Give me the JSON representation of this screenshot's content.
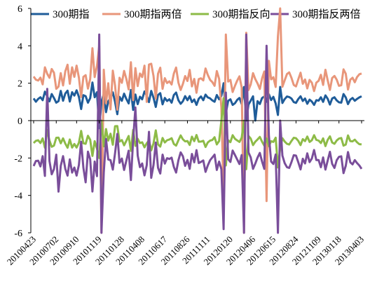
{
  "chart_data": {
    "type": "line",
    "title": "",
    "xlabel": "",
    "ylabel": "",
    "ylim": [
      -6,
      6
    ],
    "yticks": [
      -6,
      -4,
      -2,
      0,
      2,
      4,
      6
    ],
    "grid": false,
    "legend_position": "top",
    "x_tick_labels": [
      "20100423",
      "20100702",
      "20100910",
      "20101119",
      "20110128",
      "20110408",
      "20110617",
      "20110826",
      "20111111",
      "20120120",
      "20120406",
      "20120615",
      "20120824",
      "20121109",
      "20130118",
      "20130403"
    ],
    "x_count": 146,
    "series": [
      {
        "name": "300期指",
        "color": "#1f5c99",
        "values": [
          1.19,
          1.01,
          1.16,
          1.25,
          1.09,
          1.55,
          1.3,
          1.03,
          1.42,
          1.21,
          0.96,
          1.04,
          1.59,
          1.06,
          1.45,
          1.6,
          1.02,
          1.52,
          1.34,
          1.62,
          1.27,
          0.62,
          1.36,
          1.31,
          0.96,
          1.2,
          2.04,
          1.25,
          1.52,
          0.94,
          1.05,
          1.43,
          0.45,
          1.03,
          1.2,
          1.51,
          1.0,
          0.34,
          1.27,
          1.06,
          1.44,
          1.16,
          0.92,
          1.64,
          0.57,
          1.4,
          0.88,
          1.28,
          1.14,
          1.56,
          1.34,
          0.99,
          1.59,
          1.22,
          0.73,
          1.37,
          1.47,
          0.87,
          1.21,
          1.05,
          1.14,
          0.96,
          1.37,
          1.5,
          1.09,
          0.9,
          1.04,
          1.31,
          1.09,
          1.31,
          0.99,
          1.13,
          0.84,
          1.17,
          1.29,
          1.09,
          1.39,
          1.24,
          1.19,
          1.08,
          1.01,
          1.37,
          1.14,
          1.32,
          1.13,
          0.94,
          1.06,
          1.14,
          0.84,
          0.93,
          1.11,
          1.21,
          0.89,
          1.03,
          1.11,
          0.86,
          1.07,
          1.3,
          1.16,
          1.04,
          0.89,
          1.21,
          1.29,
          1.01,
          1.41,
          1.1,
          1.27,
          0.92,
          1.1,
          1.05,
          0.94,
          1.15,
          1.29,
          1.26,
          1.18,
          0.99,
          0.95,
          1.15,
          1.3,
          1.05,
          1.18,
          0.9,
          1.12,
          1.02,
          0.84,
          1.09,
          1.07,
          1.25,
          1.0,
          1.35,
          1.17,
          0.86,
          1.18,
          1.25,
          1.08,
          0.98,
          0.96,
          1.42,
          1.24,
          0.88,
          1.12,
          1.21,
          1.06,
          1.16,
          1.24,
          1.3
        ]
      },
      {
        "name": "300期指两倍",
        "color": "#e8967a",
        "values": [
          2.36,
          2.19,
          2.14,
          2.3,
          1.94,
          2.85,
          2.5,
          2.29,
          2.76,
          2.56,
          1.7,
          1.82,
          2.54,
          1.88,
          2.64,
          2.99,
          1.97,
          2.85,
          2.34,
          2.94,
          2.3,
          1.26,
          2.34,
          2.43,
          1.71,
          2.23,
          3.87,
          2.33,
          2.93,
          1.7,
          1.78,
          2.72,
          0.93,
          2.0,
          2.14,
          2.67,
          1.88,
          0.58,
          2.29,
          2.02,
          2.66,
          2.23,
          1.67,
          3.12,
          1.1,
          2.81,
          1.85,
          2.52,
          2.33,
          2.94,
          2.51,
          1.98,
          3.04,
          2.38,
          1.18,
          2.51,
          2.83,
          1.7,
          2.27,
          2.01,
          2.1,
          1.93,
          2.52,
          2.84,
          2.03,
          1.64,
          1.96,
          2.38,
          2.12,
          2.71,
          1.83,
          2.23,
          1.49,
          2.22,
          2.26,
          2.15,
          2.79,
          2.45,
          2.18,
          2.06,
          1.86,
          2.65,
          2.23,
          2.57,
          2.12,
          1.82,
          2.09,
          2.18,
          1.53,
          1.86,
          2.14,
          2.37,
          1.77,
          1.98,
          2.13,
          1.63,
          1.94,
          2.54,
          2.22,
          1.99,
          1.69,
          2.26,
          2.63,
          1.89,
          2.82,
          2.21,
          2.32,
          1.8,
          2.15,
          1.91,
          1.81,
          2.16,
          2.49,
          2.58,
          2.29,
          1.91,
          1.83,
          2.2,
          2.56,
          1.97,
          2.2,
          1.72,
          2.18,
          2.03,
          1.58,
          2.03,
          2.13,
          2.45,
          1.91,
          2.72,
          2.16,
          1.64,
          2.28,
          2.39,
          2.19,
          1.86,
          1.89,
          2.74,
          2.51,
          1.66,
          2.19,
          2.29,
          2.05,
          2.33,
          2.48,
          2.52
        ]
      },
      {
        "name": "300期指反向",
        "color": "#8dbb47",
        "values": [
          -1.2,
          -1.08,
          -1.05,
          -1.2,
          -0.95,
          -1.45,
          -1.27,
          -1.07,
          -1.4,
          -1.34,
          -0.92,
          -0.91,
          -1.21,
          -0.95,
          -1.23,
          -1.45,
          -1.01,
          -1.44,
          -1.25,
          -1.44,
          -1.18,
          -0.55,
          -1.21,
          -1.24,
          -0.81,
          -1.02,
          -1.89,
          -1.1,
          -1.51,
          -0.84,
          -0.94,
          -1.38,
          -0.45,
          -1.07,
          -1.06,
          -1.29,
          -0.89,
          -0.29,
          -1.12,
          -1.04,
          -1.32,
          -1.08,
          -0.82,
          -1.62,
          -0.5,
          -1.35,
          -0.97,
          -1.2,
          -1.16,
          -1.43,
          -1.21,
          -1.06,
          -1.59,
          -1.21,
          -0.52,
          -1.27,
          -1.39,
          -0.93,
          -1.17,
          -1.05,
          -1.01,
          -0.94,
          -1.25,
          -1.34,
          -1.05,
          -0.79,
          -1.0,
          -1.11,
          -1.09,
          -1.3,
          -0.86,
          -1.1,
          -0.77,
          -1.13,
          -1.12,
          -1.08,
          -1.41,
          -1.17,
          -1.07,
          -1.04,
          -0.89,
          -1.27,
          -1.09,
          -1.32,
          -1.08,
          -0.92,
          -1.05,
          -1.15,
          -0.78,
          -0.97,
          -1.06,
          -1.14,
          -0.91,
          -0.98,
          -1.05,
          -0.82,
          -0.96,
          -1.31,
          -1.13,
          -1.01,
          -0.87,
          -1.13,
          -1.34,
          -0.96,
          -1.37,
          -1.1,
          -1.14,
          -0.91,
          -1.04,
          -0.97,
          -0.94,
          -1.12,
          -1.24,
          -1.28,
          -1.09,
          -0.92,
          -0.94,
          -1.08,
          -1.31,
          -0.99,
          -1.1,
          -0.85,
          -1.14,
          -1.05,
          -0.78,
          -1.03,
          -1.07,
          -1.2,
          -0.95,
          -1.36,
          -1.03,
          -0.84,
          -1.17,
          -1.24,
          -1.06,
          -0.96,
          -0.93,
          -1.34,
          -1.28,
          -0.79,
          -1.1,
          -1.11,
          -1.02,
          -1.16,
          -1.26,
          -1.27
        ]
      },
      {
        "name": "300期指反两倍",
        "color": "#7a4e9a",
        "values": [
          -2.43,
          -2.16,
          -2.14,
          -2.45,
          -1.9,
          -2.96,
          -2.53,
          -2.16,
          -2.87,
          -2.59,
          -1.82,
          -1.9,
          -2.42,
          -1.9,
          -2.58,
          -2.94,
          -2.07,
          -2.78,
          -2.51,
          -2.94,
          -2.37,
          -1.13,
          -2.52,
          -2.4,
          -1.66,
          -2.07,
          -3.79,
          -2.19,
          -2.97,
          -1.66,
          -1.79,
          -2.77,
          -0.98,
          -2.08,
          -2.11,
          -2.62,
          -1.74,
          -0.71,
          -2.26,
          -2.03,
          -2.64,
          -2.14,
          -1.61,
          -3.18,
          -1.04,
          -2.67,
          -1.87,
          -2.49,
          -2.29,
          -2.93,
          -2.39,
          -1.96,
          -3.06,
          -2.37,
          -1.17,
          -2.52,
          -2.83,
          -1.82,
          -2.3,
          -2.01,
          -2.05,
          -1.98,
          -2.48,
          -2.78,
          -2.12,
          -1.7,
          -1.91,
          -2.42,
          -2.1,
          -2.58,
          -1.78,
          -2.23,
          -1.58,
          -2.27,
          -2.21,
          -2.13,
          -2.74,
          -2.4,
          -2.12,
          -1.97,
          -1.82,
          -2.64,
          -2.19,
          -2.6,
          -2.16,
          -1.85,
          -2.06,
          -2.21,
          -1.6,
          -1.84,
          -2.08,
          -2.32,
          -1.84,
          -1.96,
          -2.19,
          -1.7,
          -1.97,
          -2.58,
          -2.3,
          -1.98,
          -1.73,
          -2.19,
          -2.58,
          -1.87,
          -2.7,
          -2.19,
          -2.32,
          -1.81,
          -2.13,
          -1.99,
          -1.87,
          -2.28,
          -2.49,
          -2.53,
          -2.22,
          -1.85,
          -1.87,
          -2.22,
          -2.61,
          -2.04,
          -2.29,
          -1.75,
          -2.22,
          -2.03,
          -1.57,
          -2.11,
          -2.11,
          -2.49,
          -1.97,
          -2.62,
          -2.14,
          -1.67,
          -2.31,
          -2.53,
          -2.12,
          -1.94,
          -1.91,
          -2.81,
          -2.42,
          -1.68,
          -2.23,
          -2.34,
          -2.11,
          -2.27,
          -2.4,
          -2.58
        ]
      }
    ],
    "spikes": [
      {
        "index": 6,
        "values": [
          null,
          null,
          -0.5,
          1.7
        ]
      },
      {
        "index": 11,
        "values": [
          null,
          null,
          null,
          -3.8
        ]
      },
      {
        "index": 23,
        "values": [
          null,
          null,
          null,
          -3.3
        ]
      },
      {
        "index": 29,
        "values": [
          -0.4,
          4.0,
          -2.0,
          4.6
        ]
      },
      {
        "index": 30,
        "values": [
          1.0,
          -6.0,
          0.0,
          -6.0
        ]
      },
      {
        "index": 34,
        "values": [
          null,
          0.6,
          -0.7,
          null
        ]
      },
      {
        "index": 36,
        "values": [
          null,
          null,
          -0.3,
          null
        ]
      },
      {
        "index": 45,
        "values": [
          null,
          null,
          null,
          0.7
        ]
      },
      {
        "index": 50,
        "values": [
          null,
          1.0,
          null,
          null
        ]
      },
      {
        "index": 51,
        "values": [
          null,
          3.0,
          null,
          -0.6
        ]
      },
      {
        "index": 83,
        "values": [
          null,
          0.7,
          0.0,
          null
        ]
      },
      {
        "index": 84,
        "values": [
          2.0,
          -4.0,
          1.2,
          -5.8
        ]
      },
      {
        "index": 85,
        "values": [
          0.4,
          4.6,
          -2.4,
          1.5
        ]
      },
      {
        "index": 93,
        "values": [
          1.8,
          -6.0,
          0.0,
          -6.0
        ]
      },
      {
        "index": 94,
        "values": [
          0.0,
          4.7,
          -2.6,
          4.6
        ]
      },
      {
        "index": 98,
        "values": [
          0.0,
          null,
          null,
          null
        ]
      },
      {
        "index": 103,
        "values": [
          null,
          -4.3,
          null,
          4.0
        ]
      },
      {
        "index": 104,
        "values": [
          null,
          3.2,
          null,
          -0.8
        ]
      },
      {
        "index": 108,
        "values": [
          0.3,
          4.5,
          -2.5,
          -6.0
        ]
      },
      {
        "index": 109,
        "values": [
          1.8,
          6.0,
          -1.5,
          0.0
        ]
      }
    ]
  }
}
